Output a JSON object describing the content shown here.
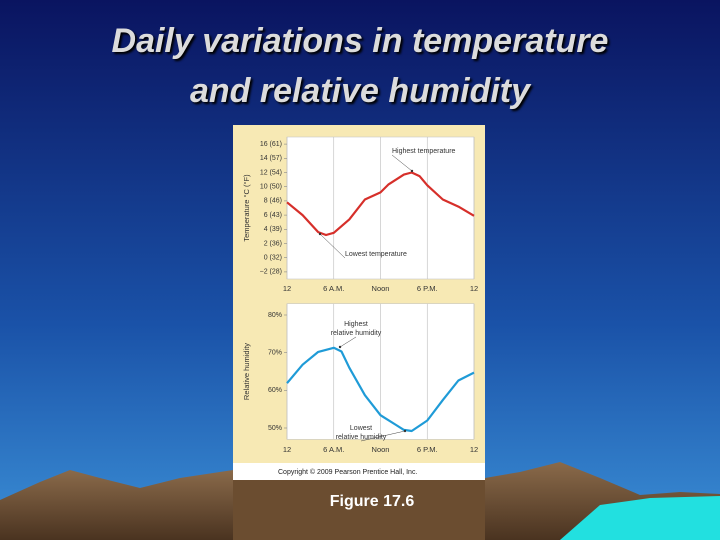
{
  "slide": {
    "title": [
      "Daily variations in temperature",
      "and relative humidity"
    ],
    "caption": "Figure 17.6",
    "copyright": "Copyright © 2009 Pearson Prentice Hall, Inc."
  },
  "chart_data": [
    {
      "type": "line",
      "y_label": "Temperature °C (°F)",
      "color": "#d62f2a",
      "xlim": [
        0,
        24
      ],
      "xticks": [
        {
          "value": 0,
          "label": "12"
        },
        {
          "value": 6,
          "label": "6 A.M."
        },
        {
          "value": 12,
          "label": "Noon"
        },
        {
          "value": 18,
          "label": "6 P.M."
        },
        {
          "value": 24,
          "label": "12"
        }
      ],
      "ylim": [
        -3,
        17
      ],
      "yticks": [
        {
          "value": 16,
          "label": "16 (61)"
        },
        {
          "value": 14,
          "label": "14 (57)"
        },
        {
          "value": 12,
          "label": "12 (54)"
        },
        {
          "value": 10,
          "label": "10 (50)"
        },
        {
          "value": 8,
          "label": "8 (46)"
        },
        {
          "value": 6,
          "label": "6 (43)"
        },
        {
          "value": 4,
          "label": "4 (39)"
        },
        {
          "value": 2,
          "label": "2 (36)"
        },
        {
          "value": 0,
          "label": "0 (32)"
        },
        {
          "value": -2,
          "label": "−2 (28)"
        }
      ],
      "grid": true,
      "x": [
        0,
        2,
        4,
        5,
        6,
        8,
        10,
        12,
        13,
        15,
        16,
        17,
        18,
        20,
        22,
        24
      ],
      "values": [
        7.8,
        6.0,
        3.6,
        3.2,
        3.5,
        5.4,
        8.2,
        9.2,
        10.3,
        11.7,
        12.0,
        11.5,
        10.2,
        8.2,
        7.2,
        5.9
      ],
      "annotations": [
        [
          "Highest temperature"
        ],
        [
          "Lowest temperature"
        ]
      ]
    },
    {
      "type": "line",
      "y_label": "Relative humidity",
      "color": "#1f9bd7",
      "xlim": [
        0,
        24
      ],
      "xticks": [
        {
          "value": 0,
          "label": "12"
        },
        {
          "value": 6,
          "label": "6 A.M."
        },
        {
          "value": 12,
          "label": "Noon"
        },
        {
          "value": 18,
          "label": "6 P.M."
        },
        {
          "value": 24,
          "label": "12"
        }
      ],
      "ylim": [
        47,
        83
      ],
      "yticks": [
        {
          "value": 80,
          "label": "80%"
        },
        {
          "value": 70,
          "label": "70%"
        },
        {
          "value": 60,
          "label": "60%"
        },
        {
          "value": 50,
          "label": "50%"
        }
      ],
      "grid": true,
      "x": [
        0,
        2,
        4,
        6,
        7,
        8,
        10,
        12,
        14,
        15,
        16,
        18,
        20,
        22,
        24
      ],
      "values": [
        61.9,
        66.8,
        70.2,
        71.3,
        70.3,
        66.0,
        58.7,
        53.4,
        50.8,
        49.5,
        49.2,
        52.0,
        57.4,
        62.6,
        64.7
      ],
      "annotations": [
        [
          "Highest",
          "relative humidity"
        ],
        [
          "Lowest",
          "relative humidity"
        ]
      ]
    }
  ]
}
